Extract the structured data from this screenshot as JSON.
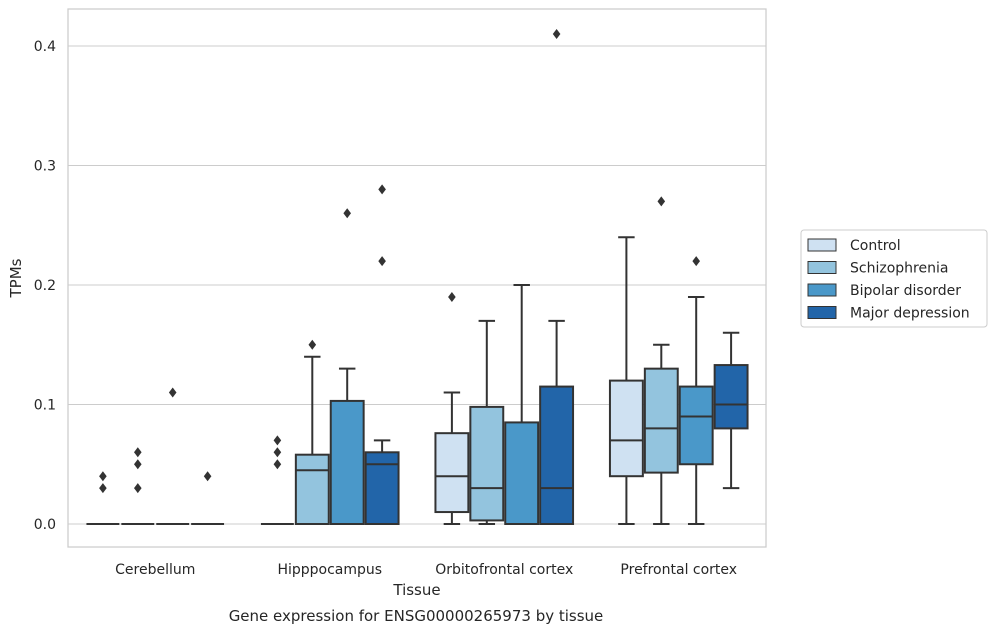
{
  "chart_data": {
    "type": "box",
    "xlabel": "Tissue",
    "ylabel": "TPMs",
    "caption": "Gene expression for ENSG00000265973 by tissue",
    "ylim": [
      -0.02,
      0.43
    ],
    "yticks": [
      "0.0",
      "0.1",
      "0.2",
      "0.3",
      "0.4"
    ],
    "grid": "horizontal",
    "legend_position": "right",
    "categories": [
      "Cerebellum",
      "Hipppocampus",
      "Orbitofrontal cortex",
      "Prefrontal cortex"
    ],
    "series": [
      {
        "name": "Control",
        "color": "#cfe1f2",
        "boxes": [
          {
            "q1": 0,
            "median": 0,
            "q3": 0,
            "whislo": 0,
            "whishi": 0,
            "fliers": [
              0.03,
              0.04
            ]
          },
          {
            "q1": 0,
            "median": 0,
            "q3": 0,
            "whislo": 0,
            "whishi": 0,
            "fliers": [
              0.05,
              0.06,
              0.07
            ]
          },
          {
            "q1": 0.01,
            "median": 0.04,
            "q3": 0.076,
            "whislo": 0,
            "whishi": 0.11,
            "fliers": [
              0.19
            ]
          },
          {
            "q1": 0.04,
            "median": 0.07,
            "q3": 0.12,
            "whislo": 0,
            "whishi": 0.24,
            "fliers": []
          }
        ]
      },
      {
        "name": "Schizophrenia",
        "color": "#93c4de",
        "boxes": [
          {
            "q1": 0,
            "median": 0,
            "q3": 0,
            "whislo": 0,
            "whishi": 0,
            "fliers": [
              0.03,
              0.05,
              0.06
            ]
          },
          {
            "q1": 0,
            "median": 0.045,
            "q3": 0.058,
            "whislo": 0,
            "whishi": 0.14,
            "fliers": [
              0.15
            ]
          },
          {
            "q1": 0.003,
            "median": 0.03,
            "q3": 0.098,
            "whislo": 0,
            "whishi": 0.17,
            "fliers": []
          },
          {
            "q1": 0.043,
            "median": 0.08,
            "q3": 0.13,
            "whislo": 0,
            "whishi": 0.15,
            "fliers": [
              0.27
            ]
          }
        ]
      },
      {
        "name": "Bipolar disorder",
        "color": "#4a98c9",
        "boxes": [
          {
            "q1": 0,
            "median": 0,
            "q3": 0,
            "whislo": 0,
            "whishi": 0,
            "fliers": [
              0.11
            ]
          },
          {
            "q1": 0,
            "median": 0,
            "q3": 0.103,
            "whislo": 0,
            "whishi": 0.13,
            "fliers": [
              0.26
            ]
          },
          {
            "q1": 0,
            "median": 0,
            "q3": 0.085,
            "whislo": 0,
            "whishi": 0.2,
            "fliers": []
          },
          {
            "q1": 0.05,
            "median": 0.09,
            "q3": 0.115,
            "whislo": 0,
            "whishi": 0.19,
            "fliers": [
              0.22
            ]
          }
        ]
      },
      {
        "name": "Major depression",
        "color": "#2265a9",
        "boxes": [
          {
            "q1": 0,
            "median": 0,
            "q3": 0,
            "whislo": 0,
            "whishi": 0,
            "fliers": [
              0.04
            ]
          },
          {
            "q1": 0,
            "median": 0.05,
            "q3": 0.06,
            "whislo": 0,
            "whishi": 0.07,
            "fliers": [
              0.22,
              0.28
            ]
          },
          {
            "q1": 0,
            "median": 0.03,
            "q3": 0.115,
            "whislo": 0,
            "whishi": 0.17,
            "fliers": [
              0.41
            ]
          },
          {
            "q1": 0.08,
            "median": 0.1,
            "q3": 0.133,
            "whislo": 0.03,
            "whishi": 0.16,
            "fliers": []
          }
        ]
      }
    ]
  }
}
